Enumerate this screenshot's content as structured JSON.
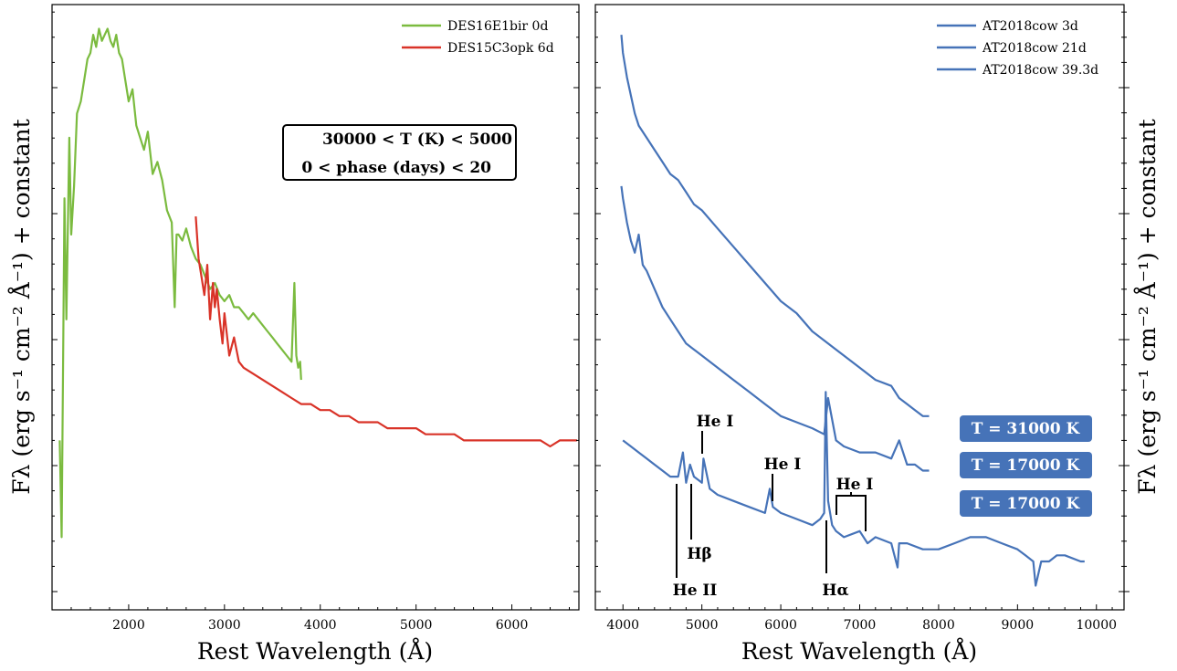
{
  "chart_data": [
    {
      "type": "line",
      "xlabel": "Rest Wavelength (Å)",
      "ylabel": "Fλ (erg s⁻¹ cm⁻² Å⁻¹) + constant",
      "xlim": [
        1200,
        6700
      ],
      "ylim": [
        0,
        100
      ],
      "xticks": [
        2000,
        3000,
        4000,
        5000,
        6000
      ],
      "yticks_labeled": false,
      "legend_position": "top-right",
      "series": [
        {
          "name": "DES16E1bir 0d",
          "color": "#7bbb3f",
          "x": [
            1280,
            1300,
            1330,
            1350,
            1380,
            1400,
            1430,
            1460,
            1500,
            1540,
            1570,
            1600,
            1630,
            1660,
            1690,
            1720,
            1750,
            1780,
            1810,
            1840,
            1870,
            1900,
            1930,
            1960,
            2000,
            2040,
            2080,
            2120,
            2160,
            2200,
            2250,
            2300,
            2350,
            2400,
            2450,
            2480,
            2500,
            2520,
            2560,
            2600,
            2650,
            2700,
            2750,
            2800,
            2850,
            2900,
            2950,
            3000,
            3050,
            3100,
            3150,
            3200,
            3250,
            3300,
            3350,
            3400,
            3450,
            3500,
            3550,
            3600,
            3650,
            3700,
            3730,
            3750,
            3770,
            3790,
            3800
          ],
          "y": [
            28,
            12,
            68,
            48,
            78,
            62,
            70,
            82,
            84,
            88,
            91,
            92,
            95,
            93,
            96,
            94,
            95,
            96,
            94,
            93,
            95,
            92,
            91,
            88,
            84,
            86,
            80,
            78,
            76,
            79,
            72,
            74,
            71,
            66,
            64,
            50,
            62,
            62,
            61,
            63,
            60,
            58,
            57,
            55,
            53,
            54,
            52,
            51,
            52,
            50,
            50,
            49,
            48,
            49,
            48,
            47,
            46,
            45,
            44,
            43,
            42,
            41,
            54,
            42,
            40,
            41,
            38
          ]
        },
        {
          "name": "DES15C3opk 6d",
          "color": "#d93328",
          "x": [
            2700,
            2730,
            2760,
            2790,
            2820,
            2850,
            2880,
            2900,
            2920,
            2950,
            2980,
            3000,
            3050,
            3100,
            3150,
            3200,
            3300,
            3400,
            3500,
            3600,
            3700,
            3800,
            3900,
            4000,
            4100,
            4200,
            4300,
            4400,
            4500,
            4600,
            4700,
            4800,
            4900,
            5000,
            5100,
            5200,
            5300,
            5400,
            5500,
            5600,
            5700,
            5800,
            5900,
            6000,
            6100,
            6200,
            6300,
            6400,
            6500,
            6600,
            6680
          ],
          "y": [
            65,
            58,
            55,
            52,
            57,
            48,
            54,
            50,
            53,
            48,
            44,
            49,
            42,
            45,
            41,
            40,
            39,
            38,
            37,
            36,
            35,
            34,
            34,
            33,
            33,
            32,
            32,
            31,
            31,
            31,
            30,
            30,
            30,
            30,
            29,
            29,
            29,
            29,
            28,
            28,
            28,
            28,
            28,
            28,
            28,
            28,
            28,
            27,
            28,
            28,
            28
          ]
        }
      ],
      "annotation_box": [
        "30000 < T (K) < 5000",
        "0 < phase (days) < 20"
      ]
    },
    {
      "type": "line",
      "xlabel": "Rest Wavelength (Å)",
      "ylabel": "Fλ (erg s⁻¹ cm⁻² Å⁻¹) + constant",
      "xlim": [
        3650,
        10350
      ],
      "ylim": [
        0,
        100
      ],
      "xticks": [
        4000,
        5000,
        6000,
        7000,
        8000,
        9000,
        10000
      ],
      "yticks_labeled": false,
      "legend_position": "top-right",
      "series": [
        {
          "name": "AT2018cow 3d",
          "color": "#4673b8",
          "x": [
            3980,
            4000,
            4050,
            4100,
            4150,
            4200,
            4300,
            4400,
            4500,
            4600,
            4700,
            4800,
            4900,
            5000,
            5200,
            5400,
            5600,
            5800,
            6000,
            6200,
            6400,
            6600,
            6800,
            7000,
            7200,
            7400,
            7500,
            7600,
            7700,
            7800,
            7880
          ],
          "y": [
            95,
            92,
            88,
            85,
            82,
            80,
            78,
            76,
            74,
            72,
            71,
            69,
            67,
            66,
            63,
            60,
            57,
            54,
            51,
            49,
            46,
            44,
            42,
            40,
            38,
            37,
            35,
            34,
            33,
            32,
            32
          ]
        },
        {
          "name": "AT2018cow 21d",
          "color": "#4673b8",
          "x": [
            3980,
            4000,
            4050,
            4100,
            4150,
            4200,
            4250,
            4300,
            4400,
            4500,
            4600,
            4700,
            4800,
            4900,
            5000,
            5200,
            5400,
            5600,
            5800,
            6000,
            6200,
            6400,
            6550,
            6600,
            6700,
            6800,
            7000,
            7200,
            7400,
            7500,
            7600,
            7700,
            7800,
            7880
          ],
          "y": [
            70,
            68,
            64,
            61,
            59,
            62,
            57,
            56,
            53,
            50,
            48,
            46,
            44,
            43,
            42,
            40,
            38,
            36,
            34,
            32,
            31,
            30,
            29,
            35,
            28,
            27,
            26,
            26,
            25,
            28,
            24,
            24,
            23,
            23
          ]
        },
        {
          "name": "AT2018cow 39.3d",
          "color": "#4673b8",
          "x": [
            4000,
            4100,
            4200,
            4300,
            4400,
            4500,
            4600,
            4700,
            4760,
            4800,
            4850,
            4900,
            5000,
            5020,
            5100,
            5200,
            5400,
            5600,
            5800,
            5860,
            5900,
            6000,
            6200,
            6400,
            6500,
            6550,
            6570,
            6600,
            6650,
            6700,
            6800,
            7000,
            7100,
            7200,
            7400,
            7480,
            7500,
            7600,
            7800,
            8000,
            8200,
            8400,
            8600,
            8800,
            9000,
            9100,
            9200,
            9230,
            9300,
            9400,
            9500,
            9600,
            9800,
            9850
          ],
          "y": [
            28,
            27,
            26,
            25,
            24,
            23,
            22,
            22,
            26,
            21,
            24,
            22,
            21,
            25,
            20,
            19,
            18,
            17,
            16,
            20,
            17,
            16,
            15,
            14,
            15,
            16,
            36,
            18,
            14,
            13,
            12,
            13,
            11,
            12,
            11,
            7,
            11,
            11,
            10,
            10,
            11,
            12,
            12,
            11,
            10,
            9,
            8,
            4,
            8,
            8,
            9,
            9,
            8,
            8
          ]
        }
      ],
      "annotations": [
        "He I",
        "He I",
        "He I",
        "Hβ",
        "He II",
        "Hα"
      ],
      "temperature_labels": [
        "T = 31000 K",
        "T = 17000 K",
        "T = 17000 K"
      ]
    }
  ]
}
